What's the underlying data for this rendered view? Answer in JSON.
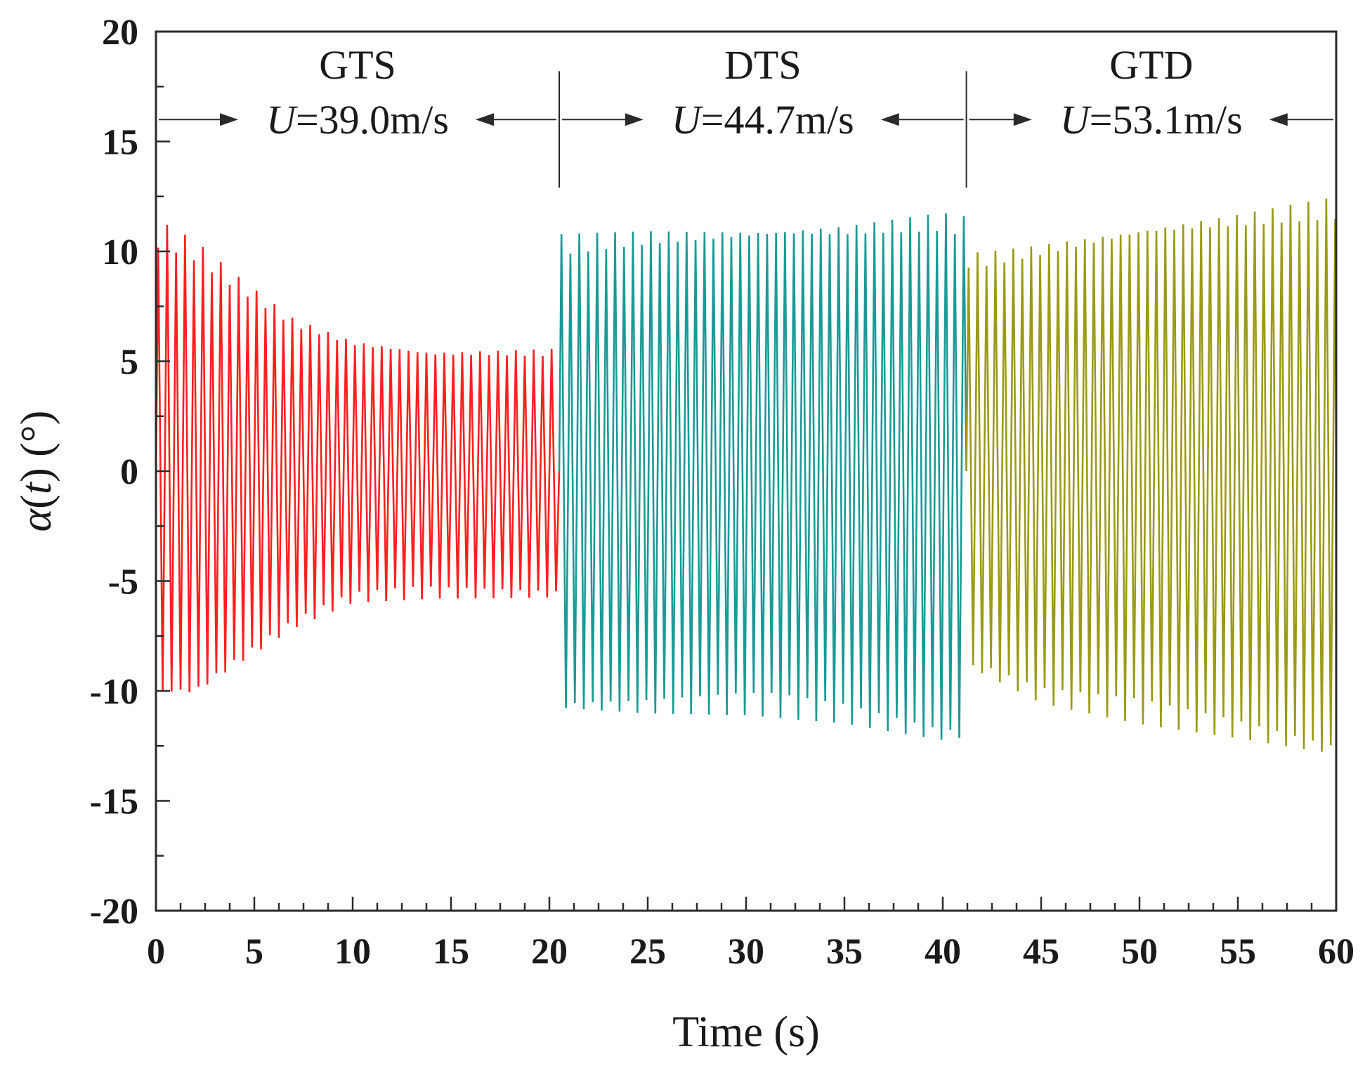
{
  "chart_data": {
    "type": "line",
    "title": "",
    "xlabel": "Time (s)",
    "ylabel_symbol": "α",
    "ylabel_open": "(",
    "ylabel_var": "t",
    "ylabel_close": ")",
    "ylabel_unit": " (°)",
    "xlim": [
      0,
      60
    ],
    "ylim": [
      -20,
      20
    ],
    "xticks": [
      "0",
      "5",
      "10",
      "15",
      "20",
      "25",
      "30",
      "35",
      "40",
      "45",
      "50",
      "55",
      "60"
    ],
    "yticks": [
      "20",
      "15",
      "10",
      "5",
      "0",
      "-5",
      "-10",
      "-15",
      "-20"
    ],
    "x_minor_step": 1.25,
    "y_minor_step": 2.5,
    "regime_boundaries": [
      20.5,
      41.2
    ],
    "series": [
      {
        "name": "GTS",
        "color": "#ff1f1f",
        "t_start": 0.0,
        "t_end": 20.5,
        "frequency_hz": 2.2,
        "peak_envelope": [
          [
            0.4,
            11.3
          ],
          [
            2,
            10.5
          ],
          [
            4,
            9.0
          ],
          [
            7,
            7.0
          ],
          [
            10,
            6.0
          ],
          [
            14,
            5.5
          ],
          [
            20.5,
            5.6
          ]
        ],
        "trough_envelope": [
          [
            0.4,
            -10.3
          ],
          [
            2,
            -10.3
          ],
          [
            4,
            -9.0
          ],
          [
            7,
            -7.2
          ],
          [
            10,
            -6.0
          ],
          [
            14,
            -5.8
          ],
          [
            20.5,
            -5.8
          ]
        ]
      },
      {
        "name": "DTS",
        "color": "#1a9a96",
        "t_start": 20.5,
        "t_end": 41.2,
        "frequency_hz": 2.2,
        "peak_envelope": [
          [
            20.9,
            10.8
          ],
          [
            25,
            11.0
          ],
          [
            30,
            11.1
          ],
          [
            35,
            11.3
          ],
          [
            40,
            11.8
          ],
          [
            41.2,
            11.6
          ]
        ],
        "trough_envelope": [
          [
            20.9,
            -11.0
          ],
          [
            25,
            -11.1
          ],
          [
            30,
            -11.1
          ],
          [
            35,
            -11.5
          ],
          [
            40,
            -12.4
          ],
          [
            41.2,
            -12.3
          ]
        ]
      },
      {
        "name": "GTD",
        "color": "#9a9a18",
        "t_start": 41.2,
        "t_end": 60.0,
        "frequency_hz": 2.2,
        "peak_envelope": [
          [
            42,
            10.0
          ],
          [
            45,
            10.4
          ],
          [
            50,
            11.2
          ],
          [
            55,
            11.8
          ],
          [
            60,
            12.5
          ]
        ],
        "trough_envelope": [
          [
            42,
            -9.3
          ],
          [
            45,
            -10.6
          ],
          [
            50,
            -11.5
          ],
          [
            55,
            -12.2
          ],
          [
            60,
            -13.1
          ]
        ]
      }
    ],
    "annotations": [
      {
        "label": "GTS",
        "speed_var": "U",
        "speed_value": "=39.0m/s",
        "span": [
          0,
          20.5
        ]
      },
      {
        "label": "DTS",
        "speed_var": "U",
        "speed_value": "=44.7m/s",
        "span": [
          20.5,
          41.2
        ]
      },
      {
        "label": "GTD",
        "speed_var": "U",
        "speed_value": "=53.1m/s",
        "span": [
          41.2,
          60
        ]
      }
    ],
    "annotation_arrow_level": 16
  }
}
